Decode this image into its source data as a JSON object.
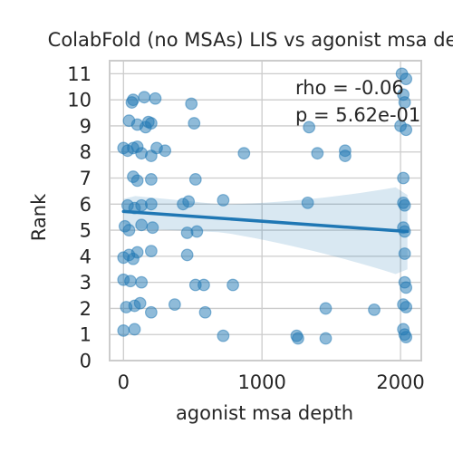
{
  "chart_data": {
    "type": "scatter",
    "title": "ColabFold (no MSAs) LIS vs agonist msa depth",
    "xlabel": "agonist msa depth",
    "ylabel": "Rank",
    "xlim": [
      -100,
      2150
    ],
    "ylim": [
      0,
      11.5
    ],
    "xticks": [
      0,
      1000,
      2000
    ],
    "yticks": [
      0,
      1,
      2,
      3,
      4,
      5,
      6,
      7,
      8,
      9,
      10,
      11
    ],
    "grid": true,
    "annotations": {
      "rho": "rho = -0.06",
      "p": "p = 5.62e-01"
    },
    "regression": {
      "x": [
        0,
        2050
      ],
      "y": [
        5.72,
        4.95
      ],
      "ci_upper": [
        6.2,
        6.35
      ],
      "ci_lower": [
        5.25,
        3.5
      ]
    },
    "points": [
      {
        "x": 60,
        "y": 9.9
      },
      {
        "x": 150,
        "y": 10.1
      },
      {
        "x": 230,
        "y": 10.05
      },
      {
        "x": 490,
        "y": 9.85
      },
      {
        "x": 70,
        "y": 10.0
      },
      {
        "x": 40,
        "y": 9.2
      },
      {
        "x": 100,
        "y": 9.05
      },
      {
        "x": 180,
        "y": 9.15
      },
      {
        "x": 200,
        "y": 9.1
      },
      {
        "x": 160,
        "y": 8.95
      },
      {
        "x": 510,
        "y": 9.1
      },
      {
        "x": 0,
        "y": 8.15
      },
      {
        "x": 30,
        "y": 8.05
      },
      {
        "x": 70,
        "y": 8.15
      },
      {
        "x": 100,
        "y": 8.2
      },
      {
        "x": 130,
        "y": 7.95
      },
      {
        "x": 200,
        "y": 7.85
      },
      {
        "x": 240,
        "y": 8.15
      },
      {
        "x": 300,
        "y": 8.05
      },
      {
        "x": 870,
        "y": 7.95
      },
      {
        "x": 70,
        "y": 7.05
      },
      {
        "x": 100,
        "y": 6.9
      },
      {
        "x": 200,
        "y": 6.95
      },
      {
        "x": 520,
        "y": 6.95
      },
      {
        "x": 30,
        "y": 5.95
      },
      {
        "x": 80,
        "y": 5.85
      },
      {
        "x": 130,
        "y": 5.95
      },
      {
        "x": 200,
        "y": 6.0
      },
      {
        "x": 430,
        "y": 6.0
      },
      {
        "x": 470,
        "y": 6.1
      },
      {
        "x": 720,
        "y": 6.15
      },
      {
        "x": 1330,
        "y": 6.05
      },
      {
        "x": 10,
        "y": 5.15
      },
      {
        "x": 40,
        "y": 5.0
      },
      {
        "x": 130,
        "y": 5.2
      },
      {
        "x": 210,
        "y": 5.1
      },
      {
        "x": 460,
        "y": 4.9
      },
      {
        "x": 530,
        "y": 4.95
      },
      {
        "x": 0,
        "y": 3.95
      },
      {
        "x": 40,
        "y": 4.05
      },
      {
        "x": 70,
        "y": 3.9
      },
      {
        "x": 100,
        "y": 4.15
      },
      {
        "x": 200,
        "y": 4.2
      },
      {
        "x": 460,
        "y": 4.05
      },
      {
        "x": 0,
        "y": 3.1
      },
      {
        "x": 50,
        "y": 3.05
      },
      {
        "x": 130,
        "y": 3.0
      },
      {
        "x": 520,
        "y": 2.9
      },
      {
        "x": 580,
        "y": 2.9
      },
      {
        "x": 790,
        "y": 2.9
      },
      {
        "x": 20,
        "y": 2.05
      },
      {
        "x": 80,
        "y": 2.1
      },
      {
        "x": 120,
        "y": 2.2
      },
      {
        "x": 200,
        "y": 1.85
      },
      {
        "x": 370,
        "y": 2.15
      },
      {
        "x": 590,
        "y": 1.85
      },
      {
        "x": 0,
        "y": 1.15
      },
      {
        "x": 80,
        "y": 1.2
      },
      {
        "x": 720,
        "y": 0.95
      },
      {
        "x": 1250,
        "y": 0.95
      },
      {
        "x": 1260,
        "y": 0.85
      },
      {
        "x": 1460,
        "y": 0.85
      },
      {
        "x": 1340,
        "y": 8.95
      },
      {
        "x": 1400,
        "y": 7.95
      },
      {
        "x": 1600,
        "y": 8.05
      },
      {
        "x": 1600,
        "y": 7.85
      },
      {
        "x": 1460,
        "y": 2.0
      },
      {
        "x": 1810,
        "y": 1.95
      },
      {
        "x": 2010,
        "y": 11.0
      },
      {
        "x": 2040,
        "y": 10.8
      },
      {
        "x": 2020,
        "y": 10.2
      },
      {
        "x": 2030,
        "y": 9.9
      },
      {
        "x": 2000,
        "y": 9.0
      },
      {
        "x": 2040,
        "y": 8.85
      },
      {
        "x": 2020,
        "y": 7.0
      },
      {
        "x": 2020,
        "y": 6.05
      },
      {
        "x": 2030,
        "y": 5.95
      },
      {
        "x": 2020,
        "y": 5.1
      },
      {
        "x": 2030,
        "y": 4.95
      },
      {
        "x": 2030,
        "y": 4.1
      },
      {
        "x": 2030,
        "y": 3.0
      },
      {
        "x": 2040,
        "y": 2.8
      },
      {
        "x": 2020,
        "y": 2.15
      },
      {
        "x": 2040,
        "y": 2.05
      },
      {
        "x": 2020,
        "y": 1.2
      },
      {
        "x": 2030,
        "y": 1.0
      },
      {
        "x": 2040,
        "y": 0.9
      }
    ]
  }
}
